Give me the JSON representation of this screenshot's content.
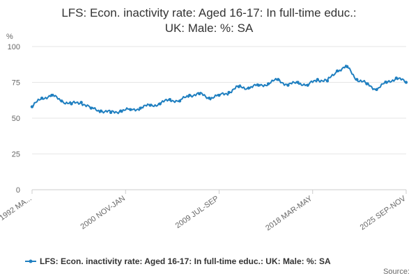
{
  "chart_data": {
    "type": "line",
    "title": "LFS: Econ. inactivity rate: Aged 16-17: In full-time educ.: UK: Male: %: SA",
    "title_lines": [
      "LFS: Econ. inactivity rate: Aged 16-17: In full-time educ.:",
      "UK: Male: %: SA"
    ],
    "ylabel": "%",
    "xlabel": "",
    "ylim": [
      0,
      100
    ],
    "y_ticks": [
      0,
      25,
      50,
      75,
      100
    ],
    "x_tick_labels": [
      "1992 MA...",
      "2000 NOV-JAN",
      "2009 JUL-SEP",
      "2018 MAR-MAY",
      "2025 SEP-NOV"
    ],
    "grid": "horizontal",
    "legend_position": "bottom",
    "color": "#1f7fc0",
    "source_label": "Source:",
    "series": [
      {
        "name": "LFS: Econ. inactivity rate: Aged 16-17: In full-time educ.: UK: Male: %: SA",
        "points": [
          [
            "1992 MA...",
            58
          ],
          [
            "1993",
            64
          ],
          [
            "1993.5",
            66
          ],
          [
            "1994",
            62
          ],
          [
            "1995",
            60
          ],
          [
            "1996",
            61
          ],
          [
            "1997",
            57
          ],
          [
            "1998",
            55
          ],
          [
            "1999",
            54
          ],
          [
            "2000 NOV-JAN",
            55
          ],
          [
            "2002",
            56
          ],
          [
            "2003",
            57
          ],
          [
            "2004",
            59
          ],
          [
            "2005",
            60
          ],
          [
            "2006",
            63
          ],
          [
            "2007",
            62
          ],
          [
            "2008",
            66
          ],
          [
            "2008.5",
            67
          ],
          [
            "2009 JUL-SEP",
            64
          ],
          [
            "2010",
            66
          ],
          [
            "2011",
            68
          ],
          [
            "2012",
            72
          ],
          [
            "2013",
            71
          ],
          [
            "2014",
            73
          ],
          [
            "2015",
            74
          ],
          [
            "2016",
            77
          ],
          [
            "2017",
            73
          ],
          [
            "2018 MAR-MAY",
            75
          ],
          [
            "2019",
            73
          ],
          [
            "2019.5",
            77
          ],
          [
            "2020",
            76
          ],
          [
            "2021",
            83
          ],
          [
            "2021.5",
            86
          ],
          [
            "2022",
            77
          ],
          [
            "2023",
            74
          ],
          [
            "2023.5",
            70
          ],
          [
            "2024",
            75
          ],
          [
            "2024.5",
            78
          ],
          [
            "2025 SEP-NOV",
            75
          ]
        ]
      }
    ]
  }
}
